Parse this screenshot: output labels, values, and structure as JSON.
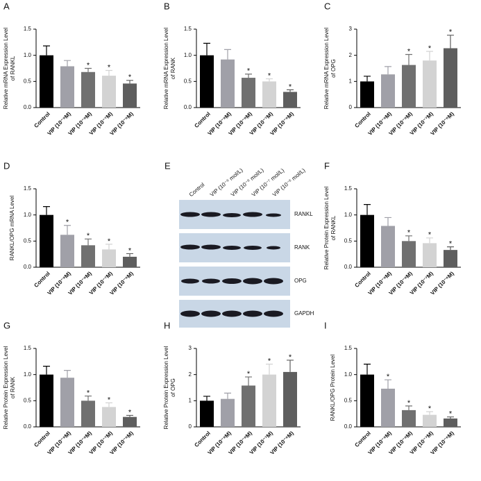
{
  "chart_data": [
    {
      "type": "bar",
      "panel": "A",
      "ylabel": [
        "Relative mRNA Expression Level",
        "of RANKL"
      ],
      "categories": [
        "Control",
        "VIP (10⁻⁹M)",
        "VIP (10⁻⁸M)",
        "VIP (10⁻⁷M)",
        "VIP (10⁻⁶M)"
      ],
      "values": [
        1.0,
        0.79,
        0.68,
        0.61,
        0.46
      ],
      "errors": [
        0.18,
        0.11,
        0.07,
        0.1,
        0.06
      ],
      "significance": [
        null,
        null,
        "*",
        "*",
        "*"
      ],
      "colors": [
        "#000000",
        "#a0a0a8",
        "#707070",
        "#d3d3d3",
        "#5e5e5e"
      ],
      "ylim": [
        0,
        1.5
      ],
      "yticks": [
        {
          "value": 0,
          "label": "0.0"
        },
        {
          "value": 0.5,
          "label": "0.5"
        },
        {
          "value": 1,
          "label": "1.0"
        },
        {
          "value": 1.5,
          "label": "1.5"
        }
      ]
    },
    {
      "type": "bar",
      "panel": "B",
      "ylabel": [
        "Relative mRNA Expression Level",
        "of RANK"
      ],
      "categories": [
        "Control",
        "VIP (10⁻⁹M)",
        "VIP (10⁻⁸M)",
        "VIP (10⁻⁷M)",
        "VIP (10⁻⁶M)"
      ],
      "values": [
        1.0,
        0.92,
        0.57,
        0.5,
        0.3
      ],
      "errors": [
        0.23,
        0.19,
        0.07,
        0.05,
        0.04
      ],
      "significance": [
        null,
        null,
        "*",
        "*",
        "*"
      ],
      "colors": [
        "#000000",
        "#a0a0a8",
        "#707070",
        "#d3d3d3",
        "#5e5e5e"
      ],
      "ylim": [
        0,
        1.5
      ],
      "yticks": [
        {
          "value": 0,
          "label": "0.0"
        },
        {
          "value": 0.5,
          "label": "0.5"
        },
        {
          "value": 1,
          "label": "1.0"
        },
        {
          "value": 1.5,
          "label": "1.5"
        }
      ]
    },
    {
      "type": "bar",
      "panel": "C",
      "ylabel": [
        "Relative mRNA Expression Level",
        "of OPG"
      ],
      "categories": [
        "Control",
        "VIP (10⁻⁹M)",
        "VIP (10⁻⁸M)",
        "VIP (10⁻⁷M)",
        "VIP (10⁻⁶M)"
      ],
      "values": [
        1.0,
        1.27,
        1.63,
        1.8,
        2.27
      ],
      "errors": [
        0.2,
        0.3,
        0.4,
        0.35,
        0.5
      ],
      "significance": [
        null,
        null,
        "*",
        "*",
        "*"
      ],
      "colors": [
        "#000000",
        "#a0a0a8",
        "#707070",
        "#d3d3d3",
        "#5e5e5e"
      ],
      "ylim": [
        0,
        3
      ],
      "yticks": [
        0,
        1,
        2,
        3
      ]
    },
    {
      "type": "bar",
      "panel": "D",
      "ylabel": [
        "RANKL/OPG mRNA Level"
      ],
      "categories": [
        "Control",
        "VIP (10⁻⁹M)",
        "VIP (10⁻⁸M)",
        "VIP (10⁻⁷M)",
        "VIP (10⁻⁶M)"
      ],
      "values": [
        1.0,
        0.62,
        0.42,
        0.34,
        0.2
      ],
      "errors": [
        0.16,
        0.18,
        0.12,
        0.1,
        0.06
      ],
      "significance": [
        null,
        "*",
        "*",
        "*",
        "*"
      ],
      "colors": [
        "#000000",
        "#a0a0a8",
        "#707070",
        "#d3d3d3",
        "#5e5e5e"
      ],
      "ylim": [
        0,
        1.5
      ],
      "yticks": [
        {
          "value": 0,
          "label": "0.0"
        },
        {
          "value": 0.5,
          "label": "0.5"
        },
        {
          "value": 1,
          "label": "1.0"
        },
        {
          "value": 1.5,
          "label": "1.5"
        }
      ]
    },
    {
      "type": "bar",
      "panel": "F",
      "ylabel": [
        "Relative Protein Expression Level",
        "of RANKL"
      ],
      "categories": [
        "Control",
        "VIP (10⁻⁹M)",
        "VIP (10⁻⁸M)",
        "VIP (10⁻⁷M)",
        "VIP (10⁻⁶M)"
      ],
      "values": [
        1.0,
        0.79,
        0.5,
        0.46,
        0.33
      ],
      "errors": [
        0.2,
        0.16,
        0.1,
        0.1,
        0.06
      ],
      "significance": [
        null,
        null,
        "*",
        "*",
        "*"
      ],
      "colors": [
        "#000000",
        "#a0a0a8",
        "#707070",
        "#d3d3d3",
        "#5e5e5e"
      ],
      "ylim": [
        0,
        1.5
      ],
      "yticks": [
        {
          "value": 0,
          "label": "0.0"
        },
        {
          "value": 0.5,
          "label": "0.5"
        },
        {
          "value": 1,
          "label": "1.0"
        },
        {
          "value": 1.5,
          "label": "1.5"
        }
      ]
    },
    {
      "type": "bar",
      "panel": "G",
      "ylabel": [
        "Relative Protein Expression Level",
        "of RANK"
      ],
      "categories": [
        "Control",
        "VIP (10⁻⁹M)",
        "VIP (10⁻⁸M)",
        "VIP (10⁻⁷M)",
        "VIP (10⁻⁶M)"
      ],
      "values": [
        1.0,
        0.94,
        0.5,
        0.38,
        0.19
      ],
      "errors": [
        0.16,
        0.14,
        0.09,
        0.08,
        0.03
      ],
      "significance": [
        null,
        null,
        "*",
        "*",
        "*"
      ],
      "colors": [
        "#000000",
        "#a0a0a8",
        "#707070",
        "#d3d3d3",
        "#5e5e5e"
      ],
      "ylim": [
        0,
        1.5
      ],
      "yticks": [
        {
          "value": 0,
          "label": "0.0"
        },
        {
          "value": 0.5,
          "label": "0.5"
        },
        {
          "value": 1,
          "label": "1.0"
        },
        {
          "value": 1.5,
          "label": "1.5"
        }
      ]
    },
    {
      "type": "bar",
      "panel": "H",
      "ylabel": [
        "Relative Protein Expression Level",
        "of OPG"
      ],
      "categories": [
        "Control",
        "VIP (10⁻⁹M)",
        "VIP (10⁻⁸M)",
        "VIP (10⁻⁷M)",
        "VIP (10⁻⁶M)"
      ],
      "values": [
        1.0,
        1.07,
        1.58,
        2.0,
        2.1
      ],
      "errors": [
        0.17,
        0.22,
        0.33,
        0.4,
        0.45
      ],
      "significance": [
        null,
        null,
        "*",
        "*",
        "*"
      ],
      "colors": [
        "#000000",
        "#a0a0a8",
        "#707070",
        "#d3d3d3",
        "#5e5e5e"
      ],
      "ylim": [
        0,
        3
      ],
      "yticks": [
        0,
        1,
        2,
        3
      ]
    },
    {
      "type": "bar",
      "panel": "I",
      "ylabel": [
        "RANKL/OPG Protein Level"
      ],
      "categories": [
        "Control",
        "VIP (10⁻⁹M)",
        "VIP (10⁻⁸M)",
        "VIP (10⁻⁷M)",
        "VIP (10⁻⁶M)"
      ],
      "values": [
        1.0,
        0.73,
        0.32,
        0.23,
        0.16
      ],
      "errors": [
        0.2,
        0.17,
        0.08,
        0.06,
        0.03
      ],
      "significance": [
        null,
        "*",
        "*",
        "*",
        "*"
      ],
      "colors": [
        "#000000",
        "#a0a0a8",
        "#707070",
        "#d3d3d3",
        "#5e5e5e"
      ],
      "ylim": [
        0,
        1.5
      ],
      "yticks": [
        {
          "value": 0,
          "label": "0.0"
        },
        {
          "value": 0.5,
          "label": "0.5"
        },
        {
          "value": 1,
          "label": "1.0"
        },
        {
          "value": 1.5,
          "label": "1.5"
        }
      ]
    }
  ],
  "blot": {
    "panel": "E",
    "columns": [
      "Control",
      "VIP (10⁻⁹ mol/L)",
      "VIP (10⁻⁸ mol/L)",
      "VIP (10⁻⁷ mol/L)",
      "VIP (10⁻⁶ mol/L)"
    ],
    "rows": [
      "RANKL",
      "RANK",
      "OPG",
      "GAPDH"
    ]
  }
}
